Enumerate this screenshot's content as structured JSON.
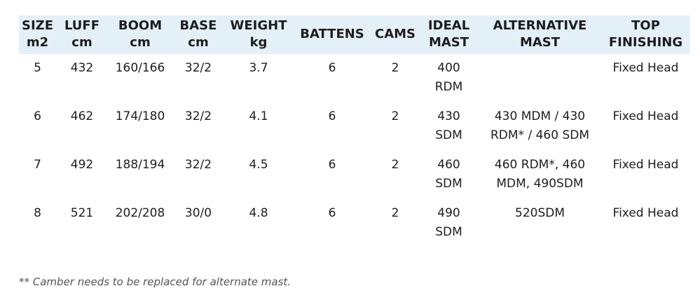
{
  "table": {
    "header": [
      [
        "SIZE",
        "m2"
      ],
      [
        "LUFF",
        "cm"
      ],
      [
        "BOOM",
        "cm"
      ],
      [
        "BASE",
        "cm"
      ],
      [
        "WEIGHT",
        "kg"
      ],
      [
        "BATTENS"
      ],
      [
        "CAMS"
      ],
      [
        "IDEAL",
        "MAST"
      ],
      [
        "ALTERNATIVE",
        "MAST"
      ],
      [
        "TOP",
        "FINISHING"
      ]
    ],
    "rows": [
      [
        "5",
        "432",
        "160/166",
        "32/2",
        "3.7",
        "6",
        "2",
        "400 RDM",
        "",
        "Fixed Head"
      ],
      [
        "6",
        "462",
        "174/180",
        "32/2",
        "4.1",
        "6",
        "2",
        "430 SDM",
        "430 MDM / 430 RDM* / 460 SDM",
        "Fixed Head"
      ],
      [
        "7",
        "492",
        "188/194",
        "32/2",
        "4.5",
        "6",
        "2",
        "460 SDM",
        "460 RDM*, 460 MDM, 490SDM",
        "Fixed Head"
      ],
      [
        "8",
        "521",
        "202/208",
        "30/0",
        "4.8",
        "6",
        "2",
        "490 SDM",
        "520SDM",
        "Fixed Head"
      ]
    ]
  },
  "footnote": "** Camber needs to be replaced for alternate mast."
}
